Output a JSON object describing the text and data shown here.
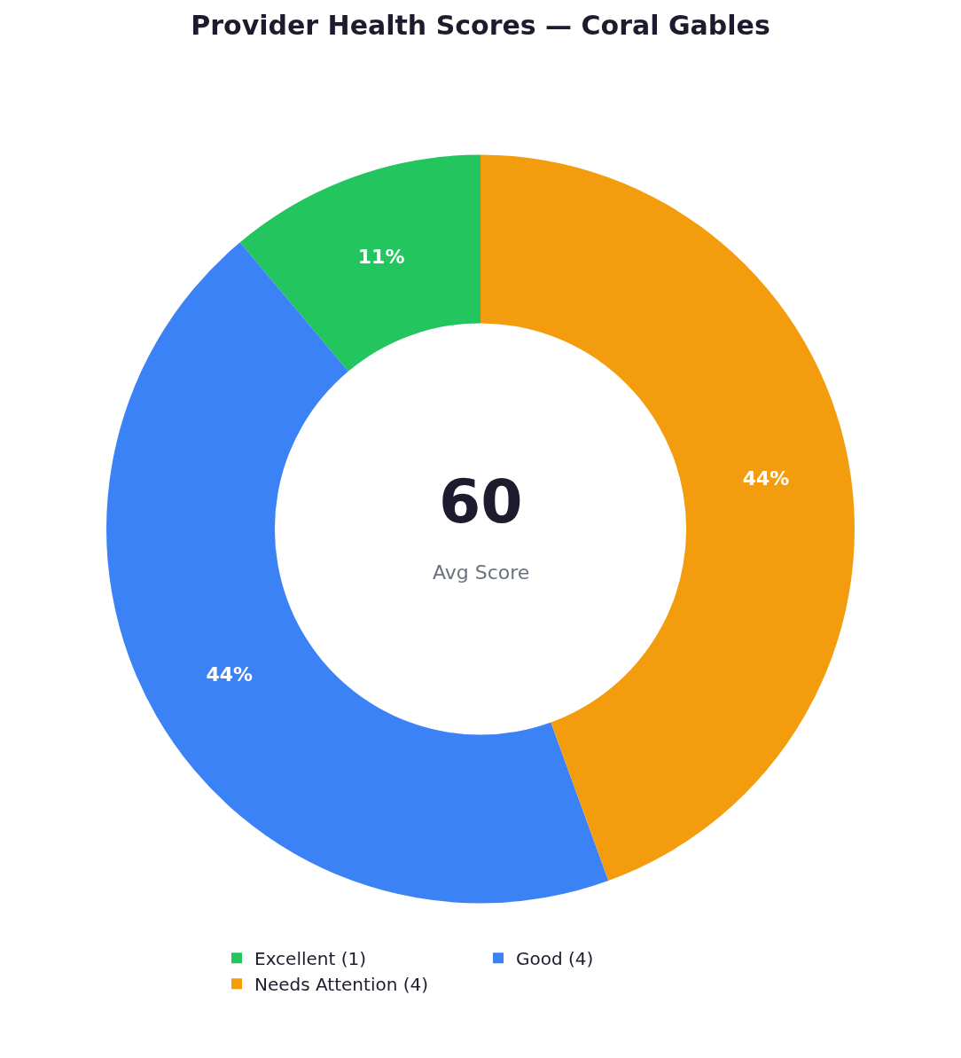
{
  "chart_data": {
    "type": "donut",
    "title": "Provider Health Scores — Coral Gables",
    "categories": [
      "Excellent (1)",
      "Good (4)",
      "Needs Attention (4)"
    ],
    "values": [
      11,
      44,
      44
    ],
    "colors": [
      "#22c55e",
      "#3b82f6",
      "#f39c0e"
    ],
    "value_labels": [
      "11%",
      "44%",
      "44%"
    ],
    "annotations": [
      "60",
      "Avg Score"
    ],
    "legend": "bottom"
  }
}
